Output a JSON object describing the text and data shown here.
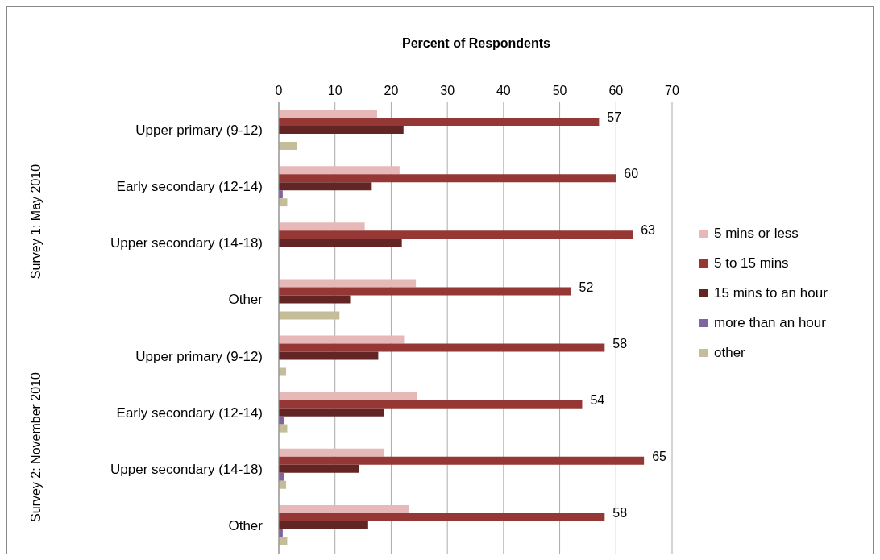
{
  "chart_data": {
    "type": "bar",
    "orientation": "horizontal",
    "xlabel": "Percent of Respondents",
    "categories": [
      "Upper primary (9-12)",
      "Early secondary (12-14)",
      "Upper secondary (14-18)",
      "Other",
      "Upper primary (9-12)",
      "Early secondary (12-14)",
      "Upper secondary (14-18)",
      "Other"
    ],
    "series": [
      {
        "name": "5 mins or less",
        "color": "#e6b9b8",
        "values": [
          17.5,
          21.5,
          15.3,
          24.4,
          22.3,
          24.6,
          18.8,
          23.2
        ]
      },
      {
        "name": "5 to 15 mins",
        "color": "#953735",
        "values": [
          57,
          60,
          63,
          52,
          58,
          54,
          65,
          58
        ],
        "value_labels": [
          "57",
          "60",
          "63",
          "52",
          "58",
          "54",
          "65",
          "58"
        ]
      },
      {
        "name": "15 mins to an hour",
        "color": "#632523",
        "values": [
          22.2,
          16.4,
          21.9,
          12.7,
          17.7,
          18.7,
          14.3,
          15.9
        ]
      },
      {
        "name": "more than an hour",
        "color": "#8064a2",
        "values": [
          null,
          0.7,
          null,
          null,
          null,
          1.0,
          0.9,
          0.7
        ]
      },
      {
        "name": "other",
        "color": "#c4bd97",
        "values": [
          3.3,
          1.5,
          null,
          10.8,
          1.3,
          1.5,
          1.3,
          1.5
        ]
      }
    ],
    "xlim": [
      0,
      70
    ],
    "xticks": [
      0,
      10,
      20,
      30,
      40,
      50,
      60,
      70
    ],
    "grid": "x",
    "legend": "right",
    "annotations": [
      "Survey 1: May 2010",
      "Survey 2: November 2010"
    ]
  }
}
